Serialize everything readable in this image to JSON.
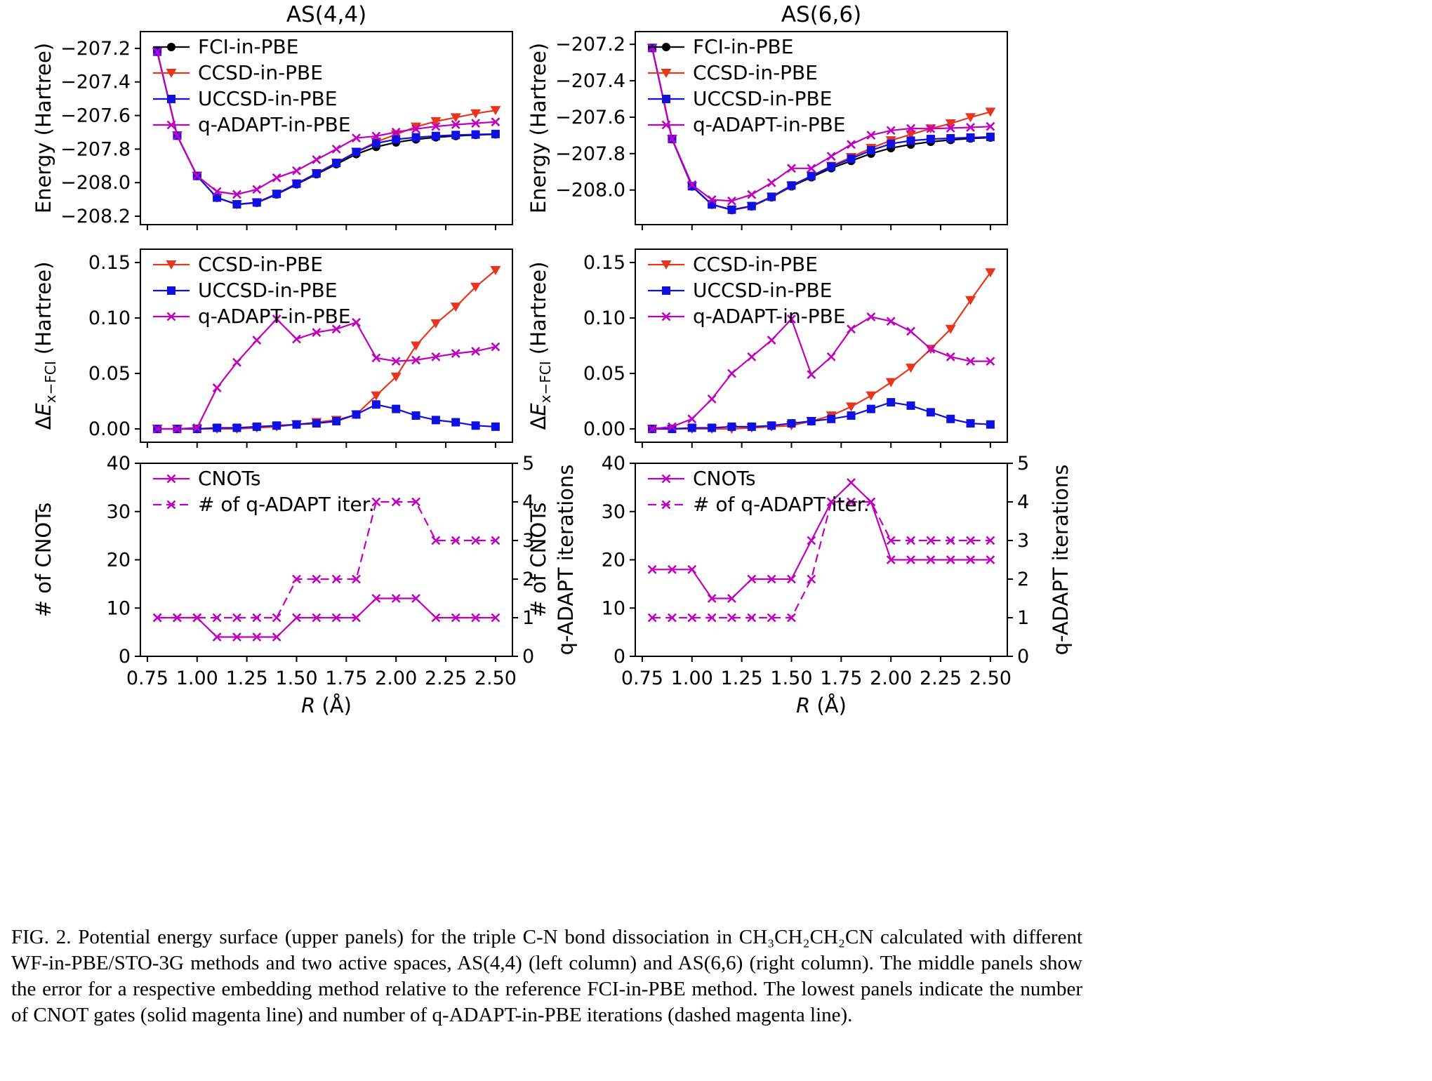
{
  "figure": {
    "caption": "FIG. 2.  Potential energy surface (upper panels) for the triple C-N bond dissociation in CH₃CH₂CH₂CN calculated with different WF-in-PBE/STO-3G methods and two active spaces, AS(4,4) (left column) and AS(6,6) (right column). The middle panels show the error for a respective embedding method relative to the reference FCI-in-PBE method. The lowest panels indicate the number of CNOT gates (solid magenta line) and number of q-ADAPT-in-PBE iterations (dashed magenta line).",
    "colors": {
      "fci": "#000000",
      "ccsd": "#e8351f",
      "uccsd": "#1010e0",
      "qadapt": "#bf00bf"
    }
  },
  "chart_data": [
    {
      "id": "energy-as44",
      "type": "line",
      "title": "AS(4,4)",
      "ylabel": "Energy (Hartree)",
      "xlabel": null,
      "xlim": [
        0.715,
        2.585
      ],
      "xticks": [
        0.75,
        1.0,
        1.25,
        1.5,
        1.75,
        2.0,
        2.25,
        2.5
      ],
      "xtick_labels": [
        "0.75",
        "1.00",
        "1.25",
        "1.50",
        "1.75",
        "2.00",
        "2.25",
        "2.50"
      ],
      "show_xtick_labels": false,
      "ylim": [
        -208.25,
        -207.1
      ],
      "yticks": [
        -207.2,
        -207.4,
        -207.6,
        -207.8,
        -208.0,
        -208.2
      ],
      "ytick_labels": [
        "−207.2",
        "−207.4",
        "−207.6",
        "−207.8",
        "−208.0",
        "−208.2"
      ],
      "legend_position": "upper left",
      "x": [
        0.8,
        0.9,
        1.0,
        1.1,
        1.2,
        1.3,
        1.4,
        1.5,
        1.6,
        1.7,
        1.8,
        1.9,
        2.0,
        2.1,
        2.2,
        2.3,
        2.4,
        2.5
      ],
      "series": [
        {
          "name": "FCI-in-PBE",
          "color": "#000000",
          "marker": "circle",
          "linestyle": "solid",
          "axis": "left",
          "values": [
            -207.22,
            -207.72,
            -207.96,
            -208.09,
            -208.13,
            -208.12,
            -208.07,
            -208.01,
            -207.95,
            -207.89,
            -207.83,
            -207.787,
            -207.76,
            -207.742,
            -207.73,
            -207.722,
            -207.716,
            -207.712
          ]
        },
        {
          "name": "CCSD-in-PBE",
          "color": "#e8351f",
          "marker": "triangle-down",
          "linestyle": "solid",
          "axis": "left",
          "values": [
            -207.22,
            -207.72,
            -207.96,
            -208.09,
            -208.13,
            -208.119,
            -208.068,
            -208.006,
            -207.944,
            -207.882,
            -207.817,
            -207.757,
            -207.713,
            -207.667,
            -207.635,
            -207.612,
            -207.588,
            -207.569
          ]
        },
        {
          "name": "UCCSD-in-PBE",
          "color": "#1010e0",
          "marker": "square",
          "linestyle": "solid",
          "axis": "left",
          "values": [
            -207.22,
            -207.72,
            -207.96,
            -208.089,
            -208.129,
            -208.118,
            -208.067,
            -208.006,
            -207.945,
            -207.883,
            -207.817,
            -207.765,
            -207.742,
            -207.73,
            -207.722,
            -207.716,
            -207.713,
            -207.71
          ]
        },
        {
          "name": "q-ADAPT-in-PBE",
          "color": "#bf00bf",
          "marker": "x",
          "linestyle": "solid",
          "axis": "left",
          "values": [
            -207.22,
            -207.72,
            -207.959,
            -208.053,
            -208.07,
            -208.04,
            -207.971,
            -207.929,
            -207.863,
            -207.8,
            -207.734,
            -207.723,
            -207.699,
            -207.68,
            -207.665,
            -207.654,
            -207.646,
            -207.638
          ]
        }
      ]
    },
    {
      "id": "energy-as66",
      "type": "line",
      "title": "AS(6,6)",
      "ylabel": "Energy (Hartree)",
      "xlabel": null,
      "xlim": [
        0.715,
        2.585
      ],
      "xticks": [
        0.75,
        1.0,
        1.25,
        1.5,
        1.75,
        2.0,
        2.25,
        2.5
      ],
      "xtick_labels": [
        "0.75",
        "1.00",
        "1.25",
        "1.50",
        "1.75",
        "2.00",
        "2.25",
        "2.50"
      ],
      "show_xtick_labels": false,
      "ylim": [
        -208.19,
        -207.13
      ],
      "yticks": [
        -207.2,
        -207.4,
        -207.6,
        -207.8,
        -208.0
      ],
      "ytick_labels": [
        "−207.2",
        "−207.4",
        "−207.6",
        "−207.8",
        "−208.0"
      ],
      "legend_position": "upper left",
      "x": [
        0.8,
        0.9,
        1.0,
        1.1,
        1.2,
        1.3,
        1.4,
        1.5,
        1.6,
        1.7,
        1.8,
        1.9,
        2.0,
        2.1,
        2.2,
        2.3,
        2.4,
        2.5
      ],
      "series": [
        {
          "name": "FCI-in-PBE",
          "color": "#000000",
          "marker": "circle",
          "linestyle": "solid",
          "axis": "left",
          "values": [
            -207.22,
            -207.72,
            -207.98,
            -208.08,
            -208.11,
            -208.09,
            -208.04,
            -207.98,
            -207.93,
            -207.88,
            -207.84,
            -207.8,
            -207.77,
            -207.75,
            -207.735,
            -207.725,
            -207.717,
            -207.712
          ]
        },
        {
          "name": "CCSD-in-PBE",
          "color": "#e8351f",
          "marker": "triangle-down",
          "linestyle": "solid",
          "axis": "left",
          "values": [
            -207.22,
            -207.72,
            -207.98,
            -208.08,
            -208.11,
            -208.089,
            -208.038,
            -207.977,
            -207.923,
            -207.868,
            -207.82,
            -207.77,
            -207.728,
            -207.695,
            -207.663,
            -207.635,
            -207.601,
            -207.571
          ]
        },
        {
          "name": "UCCSD-in-PBE",
          "color": "#1010e0",
          "marker": "square",
          "linestyle": "solid",
          "axis": "left",
          "values": [
            -207.22,
            -207.72,
            -207.979,
            -208.079,
            -208.108,
            -208.088,
            -208.037,
            -207.975,
            -207.923,
            -207.871,
            -207.828,
            -207.782,
            -207.746,
            -207.729,
            -207.72,
            -207.716,
            -207.712,
            -207.708
          ]
        },
        {
          "name": "q-ADAPT-in-PBE",
          "color": "#bf00bf",
          "marker": "x",
          "linestyle": "solid",
          "axis": "left",
          "values": [
            -207.22,
            -207.718,
            -207.971,
            -208.053,
            -208.06,
            -208.025,
            -207.96,
            -207.881,
            -207.881,
            -207.815,
            -207.75,
            -207.699,
            -207.673,
            -207.662,
            -207.663,
            -207.66,
            -207.656,
            -207.651
          ]
        }
      ]
    },
    {
      "id": "error-as44",
      "type": "line",
      "title": "",
      "ylabel": {
        "prefix": "Δ",
        "italic": "E",
        "sub": "x−FCI",
        "suffix": " (Hartree)"
      },
      "xlabel": null,
      "xlim": [
        0.715,
        2.585
      ],
      "xticks": [
        0.75,
        1.0,
        1.25,
        1.5,
        1.75,
        2.0,
        2.25,
        2.5
      ],
      "xtick_labels": [
        "0.75",
        "1.00",
        "1.25",
        "1.50",
        "1.75",
        "2.00",
        "2.25",
        "2.50"
      ],
      "show_xtick_labels": false,
      "ylim": [
        -0.012,
        0.162
      ],
      "yticks": [
        0.0,
        0.05,
        0.1,
        0.15
      ],
      "ytick_labels": [
        "0.00",
        "0.05",
        "0.10",
        "0.15"
      ],
      "legend_position": "upper left",
      "x": [
        0.8,
        0.9,
        1.0,
        1.1,
        1.2,
        1.3,
        1.4,
        1.5,
        1.6,
        1.7,
        1.8,
        1.9,
        2.0,
        2.1,
        2.2,
        2.3,
        2.4,
        2.5
      ],
      "series": [
        {
          "name": "CCSD-in-PBE",
          "color": "#e8351f",
          "marker": "triangle-down",
          "linestyle": "solid",
          "axis": "left",
          "values": [
            0.0,
            0.0,
            0.0,
            0.0,
            0.0,
            0.001,
            0.002,
            0.004,
            0.006,
            0.008,
            0.013,
            0.03,
            0.047,
            0.075,
            0.095,
            0.11,
            0.128,
            0.143
          ]
        },
        {
          "name": "UCCSD-in-PBE",
          "color": "#1010e0",
          "marker": "square",
          "linestyle": "solid",
          "axis": "left",
          "values": [
            0.0,
            0.0,
            0.0,
            0.001,
            0.001,
            0.002,
            0.003,
            0.004,
            0.005,
            0.007,
            0.013,
            0.022,
            0.018,
            0.012,
            0.008,
            0.006,
            0.003,
            0.002
          ]
        },
        {
          "name": "q-ADAPT-in-PBE",
          "color": "#bf00bf",
          "marker": "x",
          "linestyle": "solid",
          "axis": "left",
          "values": [
            0.0,
            0.0,
            0.001,
            0.037,
            0.06,
            0.08,
            0.099,
            0.081,
            0.087,
            0.09,
            0.096,
            0.064,
            0.061,
            0.062,
            0.065,
            0.068,
            0.07,
            0.074
          ]
        }
      ]
    },
    {
      "id": "error-as66",
      "type": "line",
      "title": "",
      "ylabel": {
        "prefix": "Δ",
        "italic": "E",
        "sub": "x−FCI",
        "suffix": " (Hartree)"
      },
      "xlabel": null,
      "xlim": [
        0.715,
        2.585
      ],
      "xticks": [
        0.75,
        1.0,
        1.25,
        1.5,
        1.75,
        2.0,
        2.25,
        2.5
      ],
      "xtick_labels": [
        "0.75",
        "1.00",
        "1.25",
        "1.50",
        "1.75",
        "2.00",
        "2.25",
        "2.50"
      ],
      "show_xtick_labels": false,
      "ylim": [
        -0.012,
        0.162
      ],
      "yticks": [
        0.0,
        0.05,
        0.1,
        0.15
      ],
      "ytick_labels": [
        "0.00",
        "0.05",
        "0.10",
        "0.15"
      ],
      "legend_position": "upper left",
      "x": [
        0.8,
        0.9,
        1.0,
        1.1,
        1.2,
        1.3,
        1.4,
        1.5,
        1.6,
        1.7,
        1.8,
        1.9,
        2.0,
        2.1,
        2.2,
        2.3,
        2.4,
        2.5
      ],
      "series": [
        {
          "name": "CCSD-in-PBE",
          "color": "#e8351f",
          "marker": "triangle-down",
          "linestyle": "solid",
          "axis": "left",
          "values": [
            0.0,
            0.0,
            0.0,
            0.0,
            0.0,
            0.001,
            0.002,
            0.003,
            0.007,
            0.012,
            0.02,
            0.03,
            0.042,
            0.055,
            0.072,
            0.09,
            0.116,
            0.141
          ]
        },
        {
          "name": "UCCSD-in-PBE",
          "color": "#1010e0",
          "marker": "square",
          "linestyle": "solid",
          "axis": "left",
          "values": [
            0.0,
            0.0,
            0.001,
            0.001,
            0.002,
            0.002,
            0.003,
            0.005,
            0.007,
            0.009,
            0.012,
            0.018,
            0.024,
            0.021,
            0.015,
            0.009,
            0.005,
            0.004
          ]
        },
        {
          "name": "q-ADAPT-in-PBE",
          "color": "#bf00bf",
          "marker": "x",
          "linestyle": "solid",
          "axis": "left",
          "values": [
            0.0,
            0.002,
            0.009,
            0.027,
            0.05,
            0.065,
            0.08,
            0.099,
            0.049,
            0.065,
            0.09,
            0.101,
            0.097,
            0.088,
            0.072,
            0.065,
            0.061,
            0.061
          ]
        }
      ]
    },
    {
      "id": "cnots-as44",
      "type": "line",
      "title": "",
      "ylabel": "# of CNOTs",
      "y2label": "q-ADAPT iterations",
      "xlabel": {
        "italic": "R",
        "suffix": " (Å)"
      },
      "xlim": [
        0.715,
        2.585
      ],
      "xticks": [
        0.75,
        1.0,
        1.25,
        1.5,
        1.75,
        2.0,
        2.25,
        2.5
      ],
      "xtick_labels": [
        "0.75",
        "1.00",
        "1.25",
        "1.50",
        "1.75",
        "2.00",
        "2.25",
        "2.50"
      ],
      "show_xtick_labels": true,
      "ylim": [
        0,
        40
      ],
      "yticks": [
        0,
        10,
        20,
        30,
        40
      ],
      "ytick_labels": [
        "0",
        "10",
        "20",
        "30",
        "40"
      ],
      "y2lim": [
        0,
        5
      ],
      "y2ticks": [
        0,
        1,
        2,
        3,
        4,
        5
      ],
      "y2tick_labels": [
        "0",
        "1",
        "2",
        "3",
        "4",
        "5"
      ],
      "legend_position": "upper left",
      "x": [
        0.8,
        0.9,
        1.0,
        1.1,
        1.2,
        1.3,
        1.4,
        1.5,
        1.6,
        1.7,
        1.8,
        1.9,
        2.0,
        2.1,
        2.2,
        2.3,
        2.4,
        2.5
      ],
      "series": [
        {
          "name": "CNOTs",
          "color": "#bf00bf",
          "marker": "x",
          "linestyle": "solid",
          "axis": "left",
          "values": [
            8,
            8,
            8,
            4,
            4,
            4,
            4,
            8,
            8,
            8,
            8,
            12,
            12,
            12,
            8,
            8,
            8,
            8
          ]
        },
        {
          "name": "# of q-ADAPT iter.",
          "color": "#bf00bf",
          "marker": "x",
          "linestyle": "dashed",
          "axis": "right",
          "values": [
            1,
            1,
            1,
            1,
            1,
            1,
            1,
            2,
            2,
            2,
            2,
            4,
            4,
            4,
            3,
            3,
            3,
            3
          ]
        }
      ]
    },
    {
      "id": "cnots-as66",
      "type": "line",
      "title": "",
      "ylabel": "# of CNOTs",
      "y2label": "q-ADAPT iterations",
      "xlabel": {
        "italic": "R",
        "suffix": " (Å)"
      },
      "xlim": [
        0.715,
        2.585
      ],
      "xticks": [
        0.75,
        1.0,
        1.25,
        1.5,
        1.75,
        2.0,
        2.25,
        2.5
      ],
      "xtick_labels": [
        "0.75",
        "1.00",
        "1.25",
        "1.50",
        "1.75",
        "2.00",
        "2.25",
        "2.50"
      ],
      "show_xtick_labels": true,
      "ylim": [
        0,
        40
      ],
      "yticks": [
        0,
        10,
        20,
        30,
        40
      ],
      "ytick_labels": [
        "0",
        "10",
        "20",
        "30",
        "40"
      ],
      "y2lim": [
        0,
        5
      ],
      "y2ticks": [
        0,
        1,
        2,
        3,
        4,
        5
      ],
      "y2tick_labels": [
        "0",
        "1",
        "2",
        "3",
        "4",
        "5"
      ],
      "legend_position": "upper left",
      "x": [
        0.8,
        0.9,
        1.0,
        1.1,
        1.2,
        1.3,
        1.4,
        1.5,
        1.6,
        1.7,
        1.8,
        1.9,
        2.0,
        2.1,
        2.2,
        2.3,
        2.4,
        2.5
      ],
      "series": [
        {
          "name": "CNOTs",
          "color": "#bf00bf",
          "marker": "x",
          "linestyle": "solid",
          "axis": "left",
          "values": [
            18,
            18,
            18,
            12,
            12,
            16,
            16,
            16,
            24,
            32,
            36,
            32,
            20,
            20,
            20,
            20,
            20,
            20
          ]
        },
        {
          "name": "# of q-ADAPT iter.",
          "color": "#bf00bf",
          "marker": "x",
          "linestyle": "dashed",
          "axis": "right",
          "values": [
            1,
            1,
            1,
            1,
            1,
            1,
            1,
            1,
            2,
            4,
            4,
            4,
            3,
            3,
            3,
            3,
            3,
            3
          ]
        }
      ]
    }
  ]
}
